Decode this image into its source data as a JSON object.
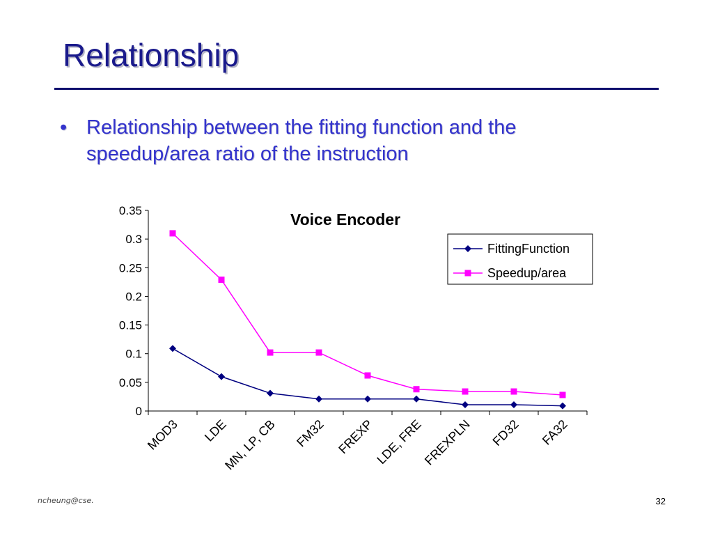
{
  "slide": {
    "title": "Relationship",
    "bullet_symbol": "•",
    "bullet_text": "Relationship between the fitting function and the speedup/area ratio of the instruction",
    "footer_email": "ncheung@cse.",
    "page_number": "32"
  },
  "colors": {
    "title": "#1a1a8c",
    "rule": "#10106e",
    "bullet_text": "#3333cc",
    "fitting_function": "#000080",
    "speedup_area": "#ff00ff"
  },
  "chart_data": {
    "type": "line",
    "title": "Voice Encoder",
    "xlabel": "",
    "ylabel": "",
    "categories": [
      "MOD3",
      "LDE",
      "MN, LP, CB",
      "FM32",
      "FREXP",
      "LDE, FRE",
      "FREXPLN",
      "FD32",
      "FA32"
    ],
    "ylim": [
      0,
      0.35
    ],
    "yticks": [
      "0",
      "0.05",
      "0.1",
      "0.15",
      "0.2",
      "0.25",
      "0.3",
      "0.35"
    ],
    "legend_position": "top-right",
    "grid": false,
    "series": [
      {
        "name": "FittingFunction",
        "marker": "diamond",
        "values": [
          0.109,
          0.06,
          0.031,
          0.021,
          0.021,
          0.021,
          0.011,
          0.011,
          0.009
        ]
      },
      {
        "name": "Speedup/area",
        "marker": "square",
        "values": [
          0.31,
          0.229,
          0.102,
          0.102,
          0.062,
          0.038,
          0.034,
          0.034,
          0.028
        ]
      }
    ]
  }
}
